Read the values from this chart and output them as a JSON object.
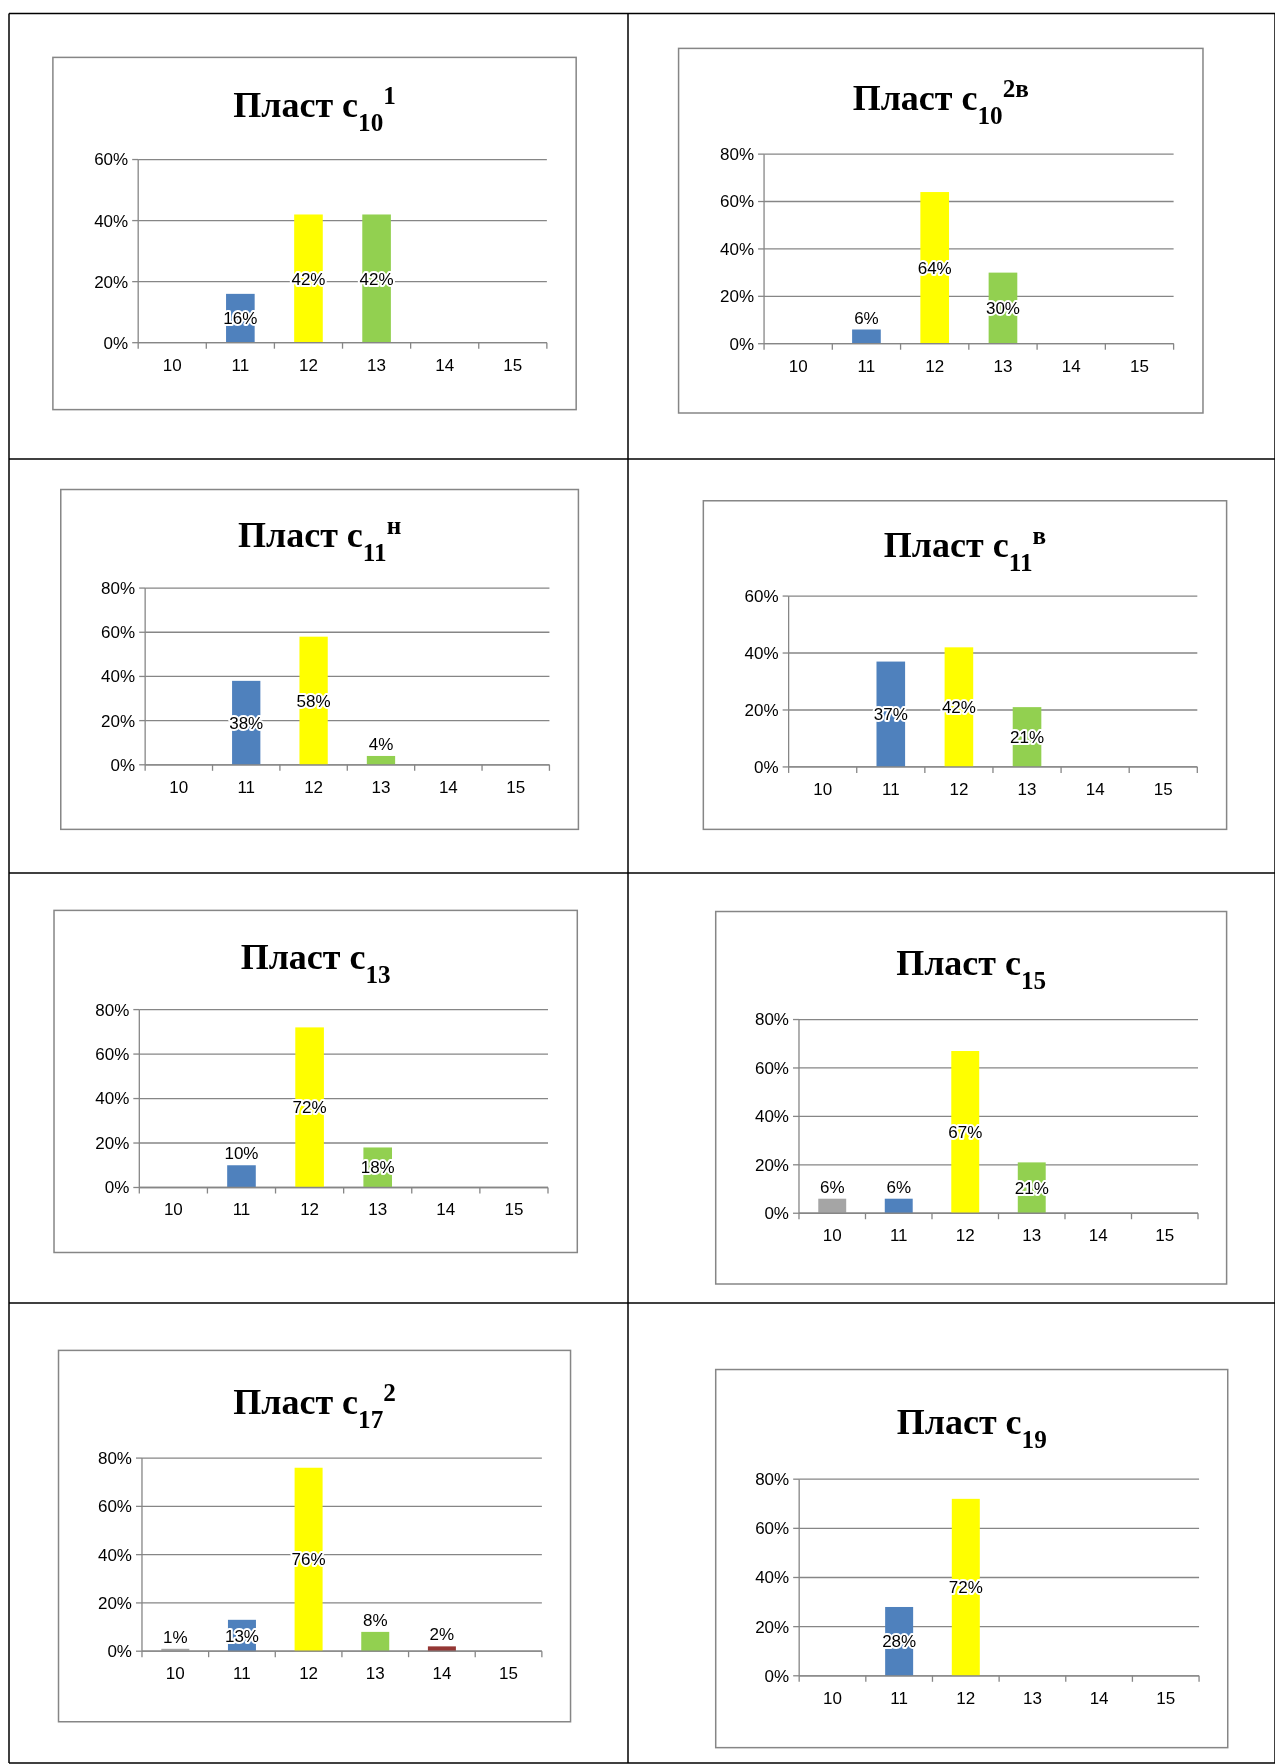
{
  "chart_data": [
    {
      "type": "bar",
      "title": "Пласт с$_{10}$$^{1}$",
      "categories": [
        "10",
        "11",
        "12",
        "13",
        "14",
        "15"
      ],
      "values": [
        null,
        16,
        42,
        42,
        null,
        null
      ],
      "colors": [
        null,
        "#4f81bd",
        "#ffff00",
        "#92d050",
        null,
        null
      ],
      "value_labels": [
        null,
        "16%",
        "42%",
        "42%",
        null,
        null
      ],
      "ylim": [
        0,
        60
      ],
      "yticks": [
        {
          "value": 0,
          "label": "0%"
        },
        {
          "value": 20,
          "label": "20%"
        },
        {
          "value": 40,
          "label": "40%"
        },
        {
          "value": 60,
          "label": "60%"
        }
      ],
      "grid": "y"
    },
    {
      "type": "bar",
      "title": "Пласт с$_{10}$$^{2в}$",
      "categories": [
        "10",
        "11",
        "12",
        "13",
        "14",
        "15"
      ],
      "values": [
        null,
        6,
        64,
        30,
        null,
        null
      ],
      "colors": [
        null,
        "#4f81bd",
        "#ffff00",
        "#92d050",
        null,
        null
      ],
      "value_labels": [
        null,
        "6%",
        "64%",
        "30%",
        null,
        null
      ],
      "ylim": [
        0,
        80
      ],
      "yticks": [
        {
          "value": 0,
          "label": "0%"
        },
        {
          "value": 20,
          "label": "20%"
        },
        {
          "value": 40,
          "label": "40%"
        },
        {
          "value": 60,
          "label": "60%"
        },
        {
          "value": 80,
          "label": "80%"
        }
      ],
      "grid": "y"
    },
    {
      "type": "bar",
      "title": "Пласт с$_{11}$$^{н}$",
      "categories": [
        "10",
        "11",
        "12",
        "13",
        "14",
        "15"
      ],
      "values": [
        null,
        38,
        58,
        4,
        null,
        null
      ],
      "colors": [
        null,
        "#4f81bd",
        "#ffff00",
        "#92d050",
        null,
        null
      ],
      "value_labels": [
        null,
        "38%",
        "58%",
        "4%",
        null,
        null
      ],
      "ylim": [
        0,
        80
      ],
      "yticks": [
        {
          "value": 0,
          "label": "0%"
        },
        {
          "value": 20,
          "label": "20%"
        },
        {
          "value": 40,
          "label": "40%"
        },
        {
          "value": 60,
          "label": "60%"
        },
        {
          "value": 80,
          "label": "80%"
        }
      ],
      "grid": "y"
    },
    {
      "type": "bar",
      "title": "Пласт с$_{11}$$^{в}$",
      "categories": [
        "10",
        "11",
        "12",
        "13",
        "14",
        "15"
      ],
      "values": [
        null,
        37,
        42,
        21,
        null,
        null
      ],
      "colors": [
        null,
        "#4f81bd",
        "#ffff00",
        "#92d050",
        null,
        null
      ],
      "value_labels": [
        null,
        "37%",
        "42%",
        "21%",
        null,
        null
      ],
      "ylim": [
        0,
        60
      ],
      "yticks": [
        {
          "value": 0,
          "label": "0%"
        },
        {
          "value": 20,
          "label": "20%"
        },
        {
          "value": 40,
          "label": "40%"
        },
        {
          "value": 60,
          "label": "60%"
        }
      ],
      "grid": "y"
    },
    {
      "type": "bar",
      "title": "Пласт с$_{13}$",
      "categories": [
        "10",
        "11",
        "12",
        "13",
        "14",
        "15"
      ],
      "values": [
        null,
        10,
        72,
        18,
        null,
        null
      ],
      "colors": [
        null,
        "#4f81bd",
        "#ffff00",
        "#92d050",
        null,
        null
      ],
      "value_labels": [
        null,
        "10%",
        "72%",
        "18%",
        null,
        null
      ],
      "ylim": [
        0,
        80
      ],
      "yticks": [
        {
          "value": 0,
          "label": "0%"
        },
        {
          "value": 20,
          "label": "20%"
        },
        {
          "value": 40,
          "label": "40%"
        },
        {
          "value": 60,
          "label": "60%"
        },
        {
          "value": 80,
          "label": "80%"
        }
      ],
      "grid": "y"
    },
    {
      "type": "bar",
      "title": "Пласт с$_{15}$",
      "categories": [
        "10",
        "11",
        "12",
        "13",
        "14",
        "15"
      ],
      "values": [
        6,
        6,
        67,
        21,
        null,
        null
      ],
      "colors": [
        "#a5a5a5",
        "#4f81bd",
        "#ffff00",
        "#92d050",
        null,
        null
      ],
      "value_labels": [
        "6%",
        "6%",
        "67%",
        "21%",
        null,
        null
      ],
      "ylim": [
        0,
        80
      ],
      "yticks": [
        {
          "value": 0,
          "label": "0%"
        },
        {
          "value": 20,
          "label": "20%"
        },
        {
          "value": 40,
          "label": "40%"
        },
        {
          "value": 60,
          "label": "60%"
        },
        {
          "value": 80,
          "label": "80%"
        }
      ],
      "grid": "y"
    },
    {
      "type": "bar",
      "title": "Пласт с$_{17}$$^{2}$",
      "categories": [
        "10",
        "11",
        "12",
        "13",
        "14",
        "15"
      ],
      "values": [
        1,
        13,
        76,
        8,
        2,
        null
      ],
      "colors": [
        "#a5a5a5",
        "#4f81bd",
        "#ffff00",
        "#92d050",
        "#943634",
        null
      ],
      "value_labels": [
        "1%",
        "13%",
        "76%",
        "8%",
        "2%",
        null
      ],
      "ylim": [
        0,
        80
      ],
      "yticks": [
        {
          "value": 0,
          "label": "0%"
        },
        {
          "value": 20,
          "label": "20%"
        },
        {
          "value": 40,
          "label": "40%"
        },
        {
          "value": 60,
          "label": "60%"
        },
        {
          "value": 80,
          "label": "80%"
        }
      ],
      "grid": "y"
    },
    {
      "type": "bar",
      "title": "Пласт с$_{19}$",
      "categories": [
        "10",
        "11",
        "12",
        "13",
        "14",
        "15"
      ],
      "values": [
        null,
        28,
        72,
        null,
        null,
        null
      ],
      "colors": [
        null,
        "#4f81bd",
        "#ffff00",
        null,
        null,
        null
      ],
      "value_labels": [
        null,
        "28%",
        "72%",
        null,
        null,
        null
      ],
      "ylim": [
        0,
        80
      ],
      "yticks": [
        {
          "value": 0,
          "label": "0%"
        },
        {
          "value": 20,
          "label": "20%"
        },
        {
          "value": 40,
          "label": "40%"
        },
        {
          "value": 60,
          "label": "60%"
        },
        {
          "value": 80,
          "label": "80%"
        }
      ],
      "grid": "y"
    }
  ]
}
